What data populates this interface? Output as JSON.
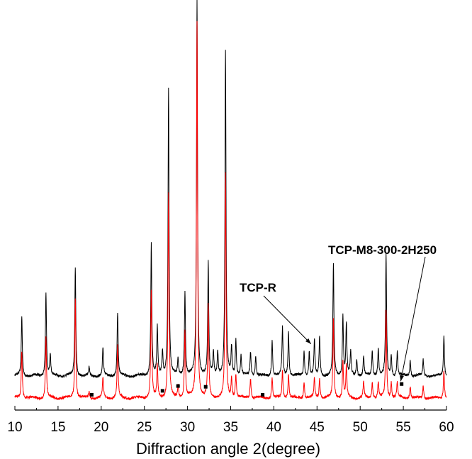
{
  "chart_data": {
    "type": "line",
    "title": "",
    "xlabel": "Diffraction angle 2(degree)",
    "ylabel": "",
    "xlim": [
      10,
      60
    ],
    "ylim": [
      0,
      100
    ],
    "xticks": [
      10,
      15,
      20,
      25,
      30,
      35,
      40,
      45,
      50,
      55,
      60
    ],
    "grid": false,
    "legend": "none",
    "series": [
      {
        "color": "#000000",
        "baseline": 8.5,
        "peaks": [
          [
            10.8,
            15
          ],
          [
            13.6,
            21
          ],
          [
            14.1,
            5
          ],
          [
            17.0,
            27
          ],
          [
            18.6,
            2
          ],
          [
            20.2,
            7
          ],
          [
            21.9,
            16
          ],
          [
            25.8,
            33
          ],
          [
            26.5,
            12
          ],
          [
            27.1,
            6
          ],
          [
            27.8,
            72
          ],
          [
            28.9,
            4
          ],
          [
            29.7,
            21
          ],
          [
            31.1,
            94
          ],
          [
            32.4,
            28
          ],
          [
            33.0,
            6
          ],
          [
            33.5,
            6
          ],
          [
            34.4,
            81
          ],
          [
            35.1,
            7
          ],
          [
            35.6,
            9
          ],
          [
            36.2,
            5
          ],
          [
            37.3,
            6
          ],
          [
            37.9,
            5
          ],
          [
            39.8,
            9
          ],
          [
            41.0,
            12
          ],
          [
            41.7,
            11
          ],
          [
            43.5,
            6
          ],
          [
            44.1,
            6
          ],
          [
            44.7,
            9
          ],
          [
            45.3,
            10
          ],
          [
            46.9,
            28
          ],
          [
            48.0,
            15
          ],
          [
            48.4,
            13
          ],
          [
            48.9,
            6
          ],
          [
            49.6,
            4
          ],
          [
            50.4,
            5
          ],
          [
            51.4,
            6
          ],
          [
            52.1,
            7
          ],
          [
            53.0,
            30
          ],
          [
            53.6,
            5
          ],
          [
            54.3,
            6
          ],
          [
            55.8,
            4
          ],
          [
            57.3,
            4
          ],
          [
            59.7,
            10
          ]
        ]
      },
      {
        "color": "#ff0000",
        "baseline": 3,
        "peaks": [
          [
            10.8,
            12
          ],
          [
            13.6,
            15
          ],
          [
            17.0,
            25
          ],
          [
            18.6,
            1.5
          ],
          [
            20.2,
            5
          ],
          [
            21.9,
            13
          ],
          [
            25.8,
            27
          ],
          [
            26.5,
            8
          ],
          [
            27.8,
            51
          ],
          [
            28.9,
            3
          ],
          [
            29.7,
            17
          ],
          [
            31.1,
            94
          ],
          [
            32.4,
            23
          ],
          [
            34.4,
            56
          ],
          [
            35.1,
            5
          ],
          [
            35.6,
            6
          ],
          [
            37.3,
            5
          ],
          [
            39.8,
            5
          ],
          [
            41.0,
            7
          ],
          [
            41.7,
            6
          ],
          [
            43.5,
            4
          ],
          [
            44.7,
            5
          ],
          [
            45.3,
            5
          ],
          [
            46.9,
            20
          ],
          [
            48.0,
            9
          ],
          [
            48.4,
            8
          ],
          [
            50.4,
            4
          ],
          [
            51.4,
            4
          ],
          [
            52.1,
            4
          ],
          [
            53.0,
            22
          ],
          [
            53.6,
            4
          ],
          [
            54.3,
            4
          ],
          [
            55.8,
            3
          ],
          [
            57.3,
            3
          ],
          [
            59.7,
            7
          ]
        ]
      }
    ],
    "markers": [
      {
        "x": 18.9,
        "y": 3.8
      },
      {
        "x": 27.1,
        "y": 4.8
      },
      {
        "x": 28.9,
        "y": 6.0
      },
      {
        "x": 32.1,
        "y": 5.8
      },
      {
        "x": 38.7,
        "y": 3.8
      },
      {
        "x": 54.8,
        "y": 6.5
      }
    ],
    "annotations": [
      {
        "text": "TCP-R",
        "arrow_to": {
          "x": 44.3,
          "y": 16.5
        }
      },
      {
        "text": "TCP-M8-300-2H250",
        "arrow_to": {
          "x": 54.7,
          "y": 7.2
        }
      }
    ]
  }
}
